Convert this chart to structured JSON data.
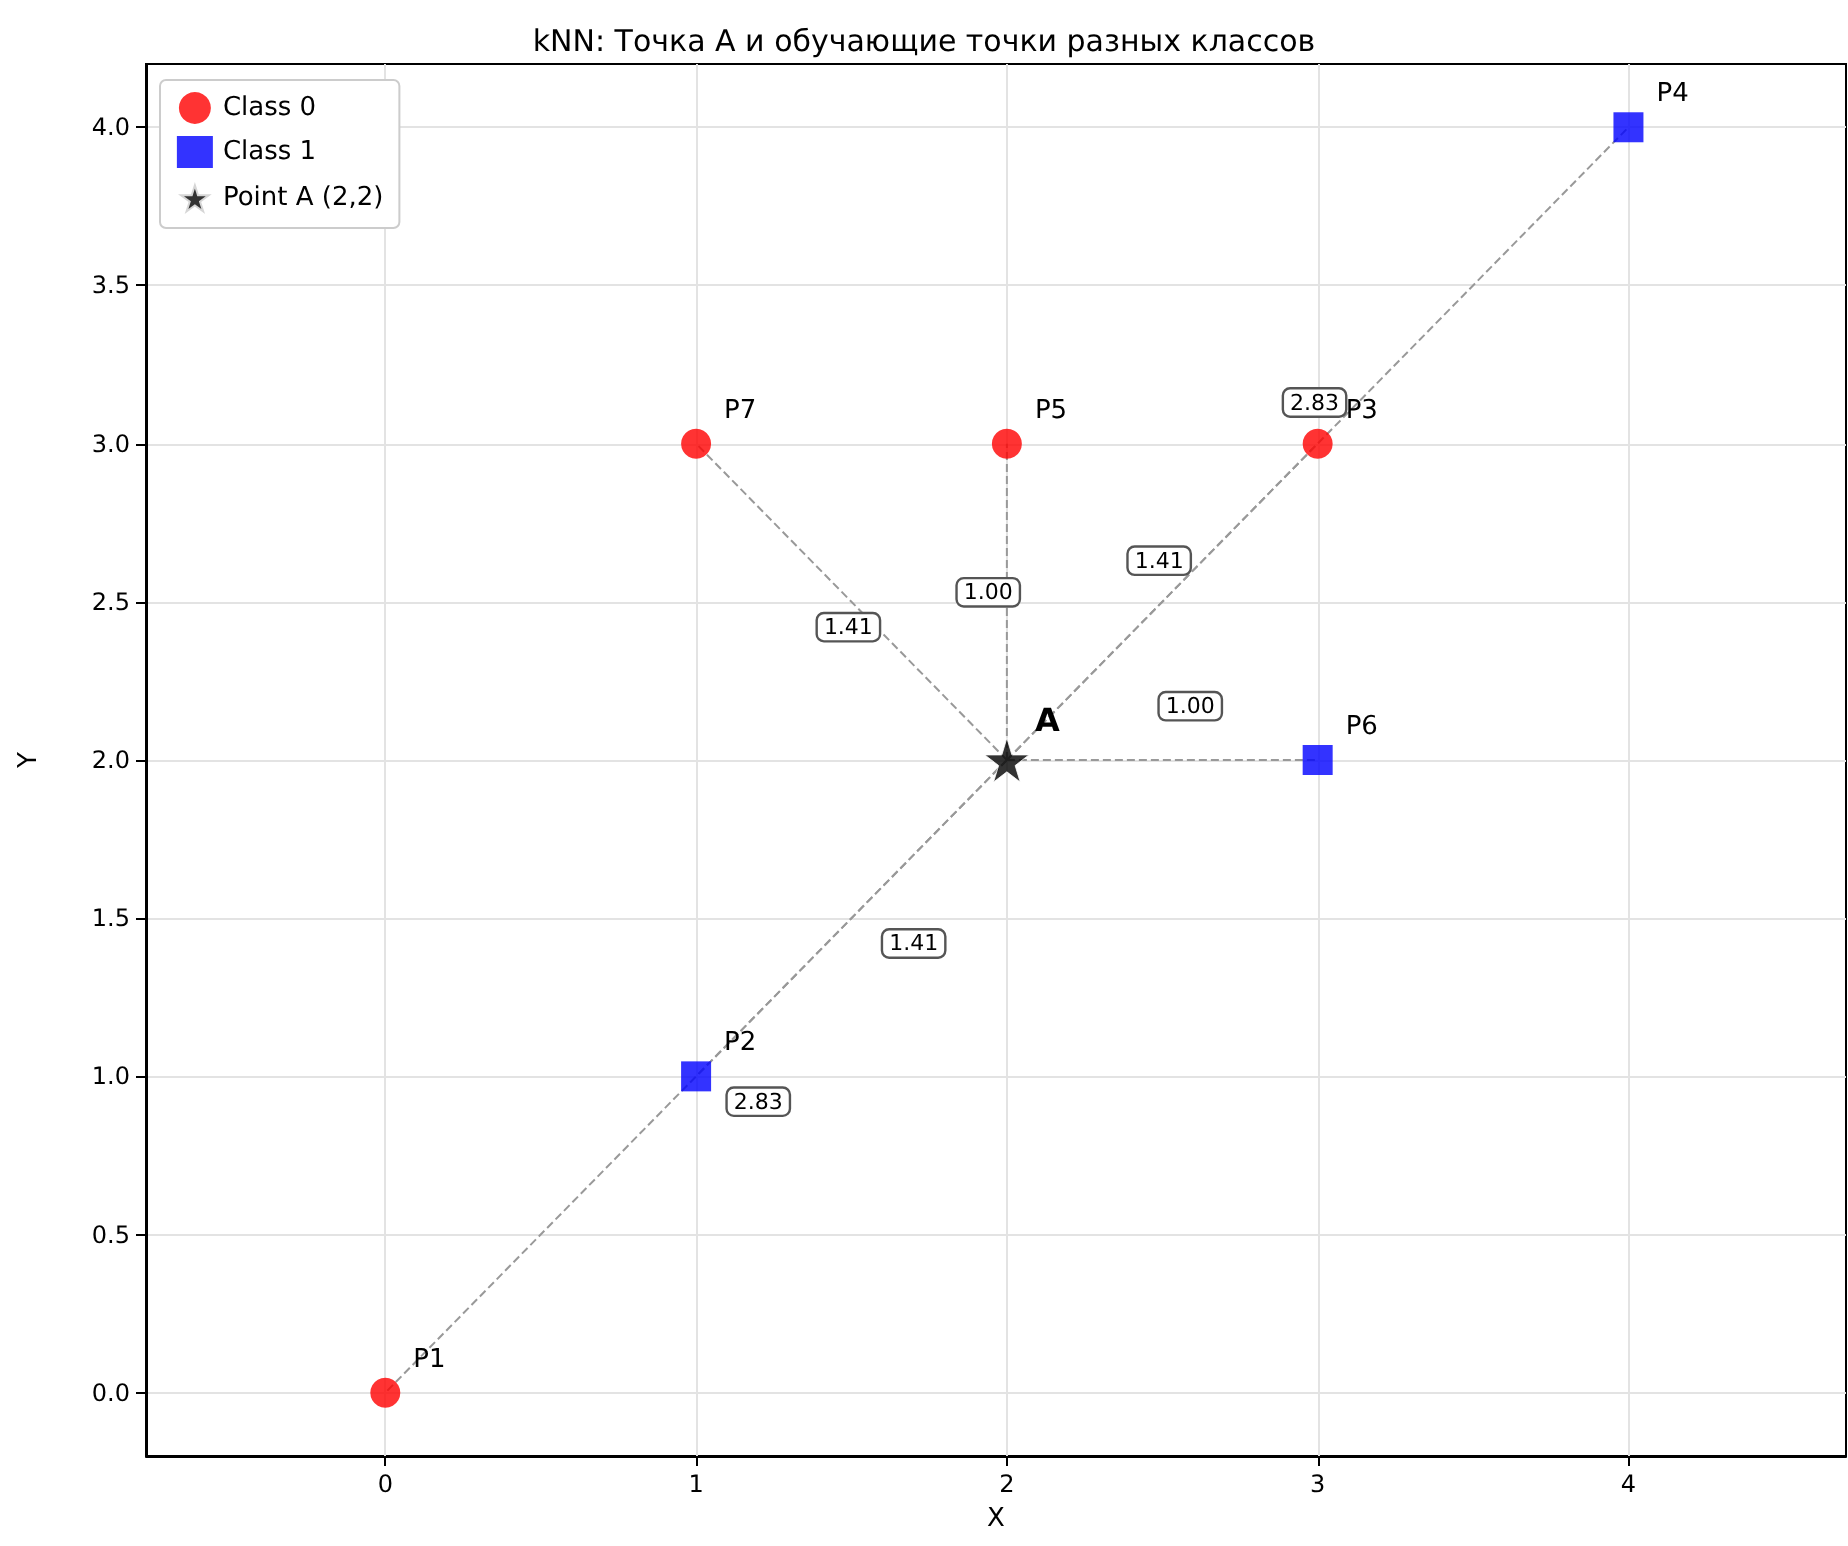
{
  "chart_data": {
    "type": "scatter",
    "title": "kNN: Точка A и обучающие точки разных классов",
    "xlabel": "X",
    "ylabel": "Y",
    "xlim": [
      -0.77,
      4.7
    ],
    "ylim": [
      -0.2,
      4.2
    ],
    "xticks": [
      0,
      1,
      2,
      3,
      4
    ],
    "yticks": [
      {
        "value": 0,
        "label": "0.0"
      },
      {
        "value": 0.5,
        "label": "0.5"
      },
      {
        "value": 1,
        "label": "1.0"
      },
      {
        "value": 1.5,
        "label": "1.5"
      },
      {
        "value": 2,
        "label": "2.0"
      },
      {
        "value": 2.5,
        "label": "2.5"
      },
      {
        "value": 3,
        "label": "3.0"
      },
      {
        "value": 3.5,
        "label": "3.5"
      },
      {
        "value": 4,
        "label": "4.0"
      }
    ],
    "grid": true,
    "legend": "top left",
    "series": [
      {
        "type": "line",
        "color": "#999999",
        "line_style": "dashed",
        "marker": "none",
        "x": [
          2,
          0
        ],
        "values": [
          2,
          0
        ]
      },
      {
        "type": "line",
        "color": "#999999",
        "line_style": "dashed",
        "marker": "none",
        "x": [
          2,
          1
        ],
        "values": [
          2,
          1
        ]
      },
      {
        "type": "line",
        "color": "#999999",
        "line_style": "dashed",
        "marker": "none",
        "x": [
          2,
          3
        ],
        "values": [
          2,
          3
        ]
      },
      {
        "type": "line",
        "color": "#999999",
        "line_style": "dashed",
        "marker": "none",
        "x": [
          2,
          4
        ],
        "values": [
          2,
          4
        ]
      },
      {
        "type": "line",
        "color": "#999999",
        "line_style": "dashed",
        "marker": "none",
        "x": [
          2,
          2
        ],
        "values": [
          2,
          3
        ]
      },
      {
        "type": "line",
        "color": "#999999",
        "line_style": "dashed",
        "marker": "none",
        "x": [
          2,
          3
        ],
        "values": [
          2,
          2
        ]
      },
      {
        "type": "line",
        "color": "#999999",
        "line_style": "dashed",
        "marker": "none",
        "x": [
          2,
          1
        ],
        "values": [
          2,
          3
        ]
      },
      {
        "name": "Class 0",
        "color": "#ff0000",
        "marker": "circle",
        "x": [
          0,
          3,
          2,
          1
        ],
        "values": [
          0,
          3,
          3,
          3
        ]
      },
      {
        "name": "Class 1",
        "color": "#0000ff",
        "marker": "square",
        "x": [
          1,
          4,
          3
        ],
        "values": [
          1,
          4,
          2
        ]
      },
      {
        "name": "Point A (2,2)",
        "color": "#000000",
        "marker": "star",
        "x": [
          2
        ],
        "values": [
          2
        ]
      }
    ],
    "annotations": [
      {
        "text": "P1",
        "x": 0,
        "y": 0
      },
      {
        "text": "P2",
        "x": 1,
        "y": 1
      },
      {
        "text": "P3",
        "x": 3,
        "y": 3
      },
      {
        "text": "P4",
        "x": 4,
        "y": 4
      },
      {
        "text": "P5",
        "x": 2,
        "y": 3
      },
      {
        "text": "P6",
        "x": 3,
        "y": 2
      },
      {
        "text": "P7",
        "x": 1,
        "y": 3
      },
      {
        "text": "A",
        "x": 2,
        "y": 2
      },
      {
        "text": "1.41",
        "x": 1.49,
        "y": 2.42
      },
      {
        "text": "1.00",
        "x": 1.94,
        "y": 2.53
      },
      {
        "text": "1.41",
        "x": 2.49,
        "y": 2.63
      },
      {
        "text": "1.00",
        "x": 2.59,
        "y": 2.17
      },
      {
        "text": "1.41",
        "x": 1.7,
        "y": 1.42
      },
      {
        "text": "2.83",
        "x": 1.2,
        "y": 0.92
      },
      {
        "text": "2.83",
        "x": 2.99,
        "y": 3.13
      }
    ]
  }
}
